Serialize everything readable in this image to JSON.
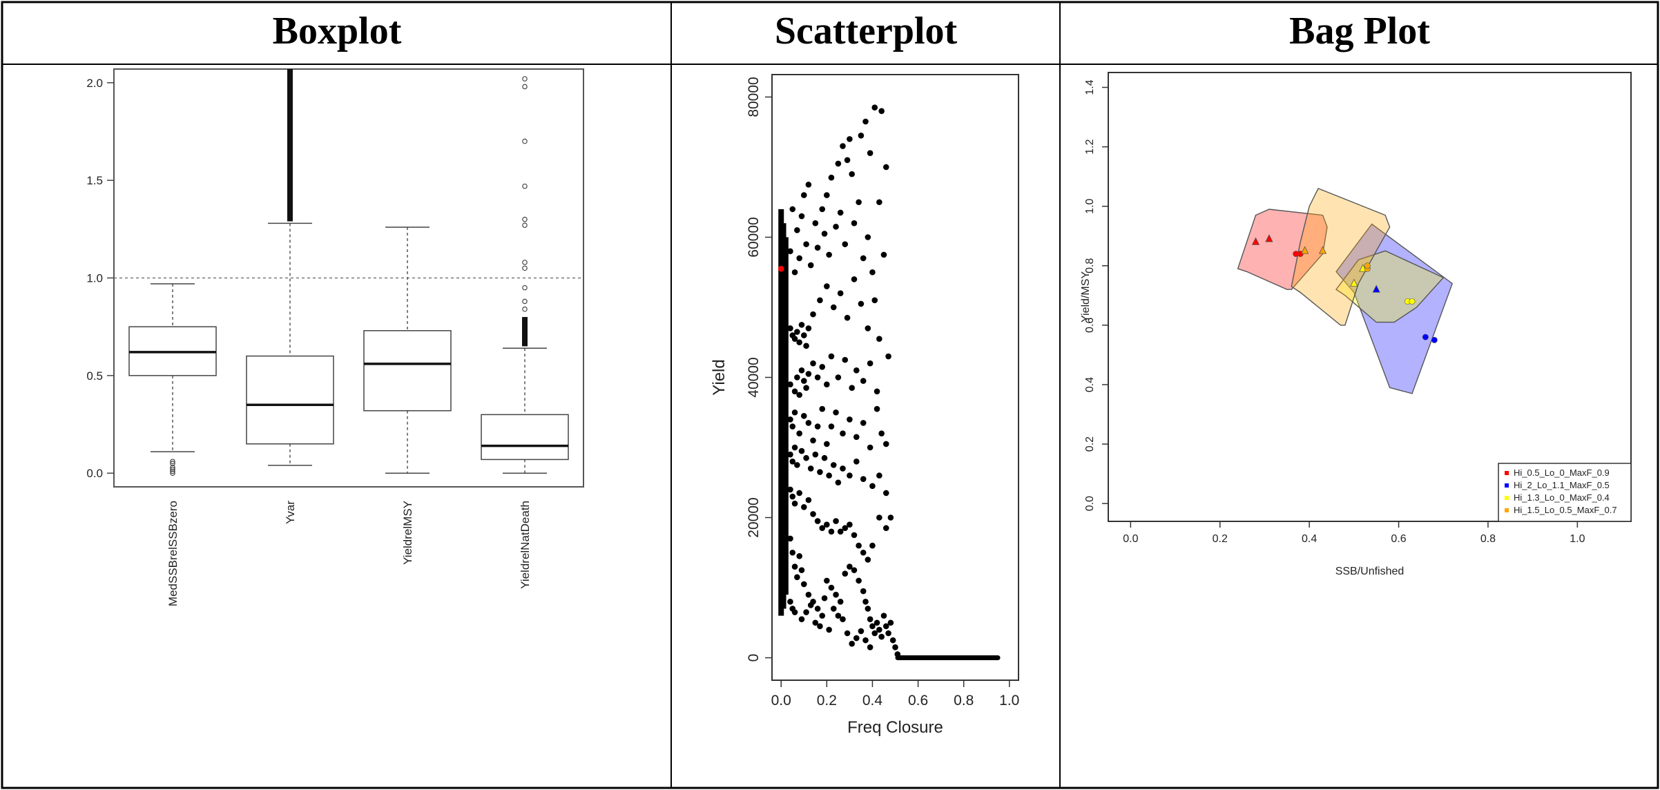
{
  "headers": [
    "Boxplot",
    "Scatterplot",
    "Bag Plot"
  ],
  "chart_data": [
    {
      "type": "boxplot",
      "categories": [
        "MedSSBrelSSBzero",
        "Yvar",
        "YieldrelMSY",
        "YieldrelNatDeath"
      ],
      "ylim": [
        -0.07,
        2.07
      ],
      "yticks": [
        0.0,
        0.5,
        1.0,
        1.5,
        2.0
      ],
      "reference_line": 1.0,
      "boxes": [
        {
          "whisker_low": 0.11,
          "q1": 0.5,
          "median": 0.62,
          "q3": 0.75,
          "whisker_high": 0.97,
          "outliers": [
            0.0,
            0.01,
            0.02,
            0.03,
            0.05,
            0.06
          ]
        },
        {
          "whisker_low": 0.04,
          "q1": 0.15,
          "median": 0.35,
          "q3": 0.6,
          "whisker_high": 1.28,
          "outliers_dense": [
            1.29,
            2.07
          ]
        },
        {
          "whisker_low": 0.0,
          "q1": 0.32,
          "median": 0.56,
          "q3": 0.73,
          "whisker_high": 1.26,
          "outliers": []
        },
        {
          "whisker_low": 0.0,
          "q1": 0.07,
          "median": 0.14,
          "q3": 0.3,
          "whisker_high": 0.64,
          "outliers_dense": [
            0.65,
            0.8
          ],
          "outliers": [
            0.84,
            0.88,
            0.95,
            1.05,
            1.08,
            1.27,
            1.3,
            1.47,
            1.7,
            1.98,
            2.02
          ]
        }
      ]
    },
    {
      "type": "scatter",
      "xlabel": "Freq Closure",
      "ylabel": "Yield",
      "xlim": [
        -0.04,
        1.04
      ],
      "ylim": [
        -3200,
        83200
      ],
      "xticks": [
        0.0,
        0.2,
        0.4,
        0.6,
        0.8,
        1.0
      ],
      "yticks": [
        0,
        20000,
        40000,
        60000,
        80000
      ],
      "highlight": {
        "x": 0.0,
        "y": 55500,
        "color": "#ff0000"
      },
      "points": [
        [
          0.05,
          64000
        ],
        [
          0.07,
          61000
        ],
        [
          0.09,
          63000
        ],
        [
          0.1,
          66000
        ],
        [
          0.12,
          67500
        ],
        [
          0.15,
          62000
        ],
        [
          0.18,
          64000
        ],
        [
          0.2,
          66000
        ],
        [
          0.22,
          68500
        ],
        [
          0.25,
          70500
        ],
        [
          0.27,
          73000
        ],
        [
          0.29,
          71000
        ],
        [
          0.3,
          74000
        ],
        [
          0.31,
          69000
        ],
        [
          0.35,
          74500
        ],
        [
          0.37,
          76500
        ],
        [
          0.39,
          72000
        ],
        [
          0.41,
          78500
        ],
        [
          0.44,
          78000
        ],
        [
          0.46,
          70000
        ],
        [
          0.04,
          58000
        ],
        [
          0.06,
          55000
        ],
        [
          0.08,
          57000
        ],
        [
          0.11,
          59000
        ],
        [
          0.13,
          56000
        ],
        [
          0.16,
          58500
        ],
        [
          0.19,
          60500
        ],
        [
          0.21,
          57500
        ],
        [
          0.24,
          61500
        ],
        [
          0.26,
          63500
        ],
        [
          0.28,
          59000
        ],
        [
          0.32,
          62000
        ],
        [
          0.34,
          65000
        ],
        [
          0.36,
          57000
        ],
        [
          0.38,
          60000
        ],
        [
          0.4,
          55000
        ],
        [
          0.43,
          65000
        ],
        [
          0.45,
          57500
        ],
        [
          0.47,
          43000
        ],
        [
          0.04,
          47000
        ],
        [
          0.05,
          46000
        ],
        [
          0.06,
          45500
        ],
        [
          0.07,
          46500
        ],
        [
          0.08,
          45000
        ],
        [
          0.09,
          47500
        ],
        [
          0.1,
          46000
        ],
        [
          0.11,
          44500
        ],
        [
          0.12,
          47000
        ],
        [
          0.14,
          49000
        ],
        [
          0.17,
          51000
        ],
        [
          0.2,
          53000
        ],
        [
          0.23,
          50000
        ],
        [
          0.26,
          52000
        ],
        [
          0.29,
          48500
        ],
        [
          0.32,
          54000
        ],
        [
          0.35,
          50500
        ],
        [
          0.38,
          47000
        ],
        [
          0.41,
          51000
        ],
        [
          0.43,
          45500
        ],
        [
          0.04,
          39000
        ],
        [
          0.06,
          38000
        ],
        [
          0.07,
          40000
        ],
        [
          0.08,
          37500
        ],
        [
          0.09,
          41000
        ],
        [
          0.1,
          39500
        ],
        [
          0.11,
          38500
        ],
        [
          0.12,
          40500
        ],
        [
          0.14,
          42000
        ],
        [
          0.16,
          40000
        ],
        [
          0.18,
          41500
        ],
        [
          0.2,
          39000
        ],
        [
          0.22,
          43000
        ],
        [
          0.25,
          40000
        ],
        [
          0.28,
          42500
        ],
        [
          0.31,
          38500
        ],
        [
          0.33,
          41000
        ],
        [
          0.36,
          39500
        ],
        [
          0.39,
          42000
        ],
        [
          0.42,
          38000
        ],
        [
          0.04,
          34000
        ],
        [
          0.05,
          33000
        ],
        [
          0.06,
          35000
        ],
        [
          0.08,
          32000
        ],
        [
          0.1,
          34500
        ],
        [
          0.12,
          33500
        ],
        [
          0.14,
          31000
        ],
        [
          0.16,
          33000
        ],
        [
          0.18,
          35500
        ],
        [
          0.2,
          30500
        ],
        [
          0.22,
          33000
        ],
        [
          0.24,
          35000
        ],
        [
          0.27,
          32000
        ],
        [
          0.3,
          34000
        ],
        [
          0.33,
          31500
        ],
        [
          0.36,
          33500
        ],
        [
          0.39,
          30000
        ],
        [
          0.42,
          35500
        ],
        [
          0.44,
          32000
        ],
        [
          0.46,
          30500
        ],
        [
          0.04,
          29000
        ],
        [
          0.05,
          28000
        ],
        [
          0.06,
          30000
        ],
        [
          0.07,
          27500
        ],
        [
          0.09,
          29500
        ],
        [
          0.11,
          28500
        ],
        [
          0.13,
          27000
        ],
        [
          0.15,
          29000
        ],
        [
          0.17,
          26500
        ],
        [
          0.19,
          28500
        ],
        [
          0.21,
          26000
        ],
        [
          0.23,
          27500
        ],
        [
          0.25,
          25000
        ],
        [
          0.27,
          27000
        ],
        [
          0.3,
          26000
        ],
        [
          0.33,
          28000
        ],
        [
          0.36,
          25500
        ],
        [
          0.4,
          24500
        ],
        [
          0.43,
          26000
        ],
        [
          0.46,
          23500
        ],
        [
          0.04,
          24000
        ],
        [
          0.05,
          23000
        ],
        [
          0.06,
          22000
        ],
        [
          0.08,
          23500
        ],
        [
          0.1,
          21500
        ],
        [
          0.12,
          22500
        ],
        [
          0.14,
          20500
        ],
        [
          0.16,
          19500
        ],
        [
          0.18,
          18500
        ],
        [
          0.2,
          19000
        ],
        [
          0.22,
          18000
        ],
        [
          0.24,
          19500
        ],
        [
          0.26,
          18000
        ],
        [
          0.28,
          18500
        ],
        [
          0.3,
          19000
        ],
        [
          0.32,
          17500
        ],
        [
          0.34,
          16000
        ],
        [
          0.36,
          15000
        ],
        [
          0.38,
          14000
        ],
        [
          0.4,
          16000
        ],
        [
          0.43,
          20000
        ],
        [
          0.46,
          18500
        ],
        [
          0.48,
          20000
        ],
        [
          0.04,
          17000
        ],
        [
          0.05,
          15000
        ],
        [
          0.06,
          13000
        ],
        [
          0.07,
          11500
        ],
        [
          0.08,
          14500
        ],
        [
          0.09,
          12500
        ],
        [
          0.1,
          10500
        ],
        [
          0.12,
          9000
        ],
        [
          0.14,
          8000
        ],
        [
          0.16,
          7000
        ],
        [
          0.18,
          6000
        ],
        [
          0.2,
          11000
        ],
        [
          0.22,
          10000
        ],
        [
          0.24,
          9000
        ],
        [
          0.26,
          8000
        ],
        [
          0.28,
          12000
        ],
        [
          0.3,
          13000
        ],
        [
          0.32,
          12500
        ],
        [
          0.34,
          11000
        ],
        [
          0.36,
          9500
        ],
        [
          0.37,
          8000
        ],
        [
          0.38,
          7000
        ],
        [
          0.39,
          5500
        ],
        [
          0.4,
          4500
        ],
        [
          0.41,
          3500
        ],
        [
          0.42,
          5000
        ],
        [
          0.43,
          4000
        ],
        [
          0.44,
          3000
        ],
        [
          0.45,
          6000
        ],
        [
          0.46,
          4500
        ],
        [
          0.47,
          3500
        ],
        [
          0.48,
          5000
        ],
        [
          0.49,
          2500
        ],
        [
          0.5,
          1500
        ],
        [
          0.51,
          500
        ],
        [
          0.04,
          8000
        ],
        [
          0.05,
          7000
        ],
        [
          0.06,
          6500
        ],
        [
          0.09,
          5500
        ],
        [
          0.11,
          6500
        ],
        [
          0.13,
          7500
        ],
        [
          0.15,
          5000
        ],
        [
          0.17,
          4500
        ],
        [
          0.19,
          8500
        ],
        [
          0.21,
          4000
        ],
        [
          0.23,
          7000
        ],
        [
          0.25,
          6000
        ],
        [
          0.27,
          5500
        ],
        [
          0.29,
          3500
        ],
        [
          0.31,
          2000
        ],
        [
          0.33,
          2800
        ],
        [
          0.35,
          3800
        ],
        [
          0.37,
          2500
        ],
        [
          0.39,
          1500
        ]
      ],
      "dense_columns": [
        {
          "x": 0.0,
          "ymin": 6000,
          "ymax": 64000
        },
        {
          "x": 0.01,
          "ymin": 7000,
          "ymax": 62000
        },
        {
          "x": 0.02,
          "ymin": 9000,
          "ymax": 60000
        }
      ],
      "dense_row": {
        "y": 0,
        "xmin": 0.5,
        "xmax": 0.96
      }
    },
    {
      "type": "bagplot",
      "xlabel": "SSB/Unfished",
      "ylabel": "Yield/MSY",
      "xlim": [
        -0.05,
        1.12
      ],
      "ylim": [
        -0.06,
        1.45
      ],
      "xticks": [
        0.0,
        0.2,
        0.4,
        0.6,
        0.8,
        1.0
      ],
      "yticks": [
        0.0,
        0.2,
        0.4,
        0.6,
        0.8,
        1.0,
        1.2,
        1.4
      ],
      "legend_position": "bottom-right",
      "series": [
        {
          "name": "Hi_0.5_Lo_0_MaxF_0.9",
          "color": "#ff0000",
          "bag": [
            [
              0.24,
              0.79
            ],
            [
              0.28,
              0.97
            ],
            [
              0.31,
              0.99
            ],
            [
              0.43,
              0.97
            ],
            [
              0.44,
              0.93
            ],
            [
              0.43,
              0.84
            ],
            [
              0.36,
              0.72
            ],
            [
              0.35,
              0.72
            ],
            [
              0.26,
              0.78
            ]
          ],
          "triangles": [
            [
              0.28,
              0.88
            ],
            [
              0.31,
              0.89
            ]
          ],
          "dots": [
            [
              0.37,
              0.84
            ],
            [
              0.38,
              0.84
            ]
          ]
        },
        {
          "name": "Hi_2_Lo_1.1_MaxF_0.5",
          "color": "#0000ff",
          "bag": [
            [
              0.46,
              0.78
            ],
            [
              0.54,
              0.94
            ],
            [
              0.72,
              0.74
            ],
            [
              0.63,
              0.37
            ],
            [
              0.58,
              0.39
            ],
            [
              0.5,
              0.71
            ]
          ],
          "triangles": [
            [
              0.55,
              0.72
            ]
          ],
          "dots": [
            [
              0.66,
              0.56
            ],
            [
              0.68,
              0.55
            ]
          ]
        },
        {
          "name": "Hi_1.3_Lo_0_MaxF_0.4",
          "color": "#ffff00",
          "bag": [
            [
              0.46,
              0.72
            ],
            [
              0.51,
              0.82
            ],
            [
              0.57,
              0.85
            ],
            [
              0.7,
              0.76
            ],
            [
              0.64,
              0.66
            ],
            [
              0.59,
              0.61
            ],
            [
              0.55,
              0.61
            ],
            [
              0.48,
              0.7
            ]
          ],
          "triangles": [
            [
              0.5,
              0.74
            ],
            [
              0.52,
              0.79
            ]
          ],
          "dots": [
            [
              0.62,
              0.68
            ],
            [
              0.63,
              0.68
            ]
          ]
        },
        {
          "name": "Hi_1.5_Lo_0.5_MaxF_0.7",
          "color": "#ffa500",
          "bag": [
            [
              0.36,
              0.73
            ],
            [
              0.38,
              0.88
            ],
            [
              0.4,
              1.0
            ],
            [
              0.42,
              1.06
            ],
            [
              0.57,
              0.97
            ],
            [
              0.58,
              0.93
            ],
            [
              0.55,
              0.85
            ],
            [
              0.51,
              0.74
            ],
            [
              0.48,
              0.6
            ],
            [
              0.47,
              0.6
            ],
            [
              0.38,
              0.71
            ]
          ],
          "triangles": [
            [
              0.43,
              0.85
            ],
            [
              0.39,
              0.85
            ]
          ],
          "dots": [
            [
              0.53,
              0.79
            ],
            [
              0.53,
              0.8
            ]
          ]
        }
      ]
    }
  ]
}
